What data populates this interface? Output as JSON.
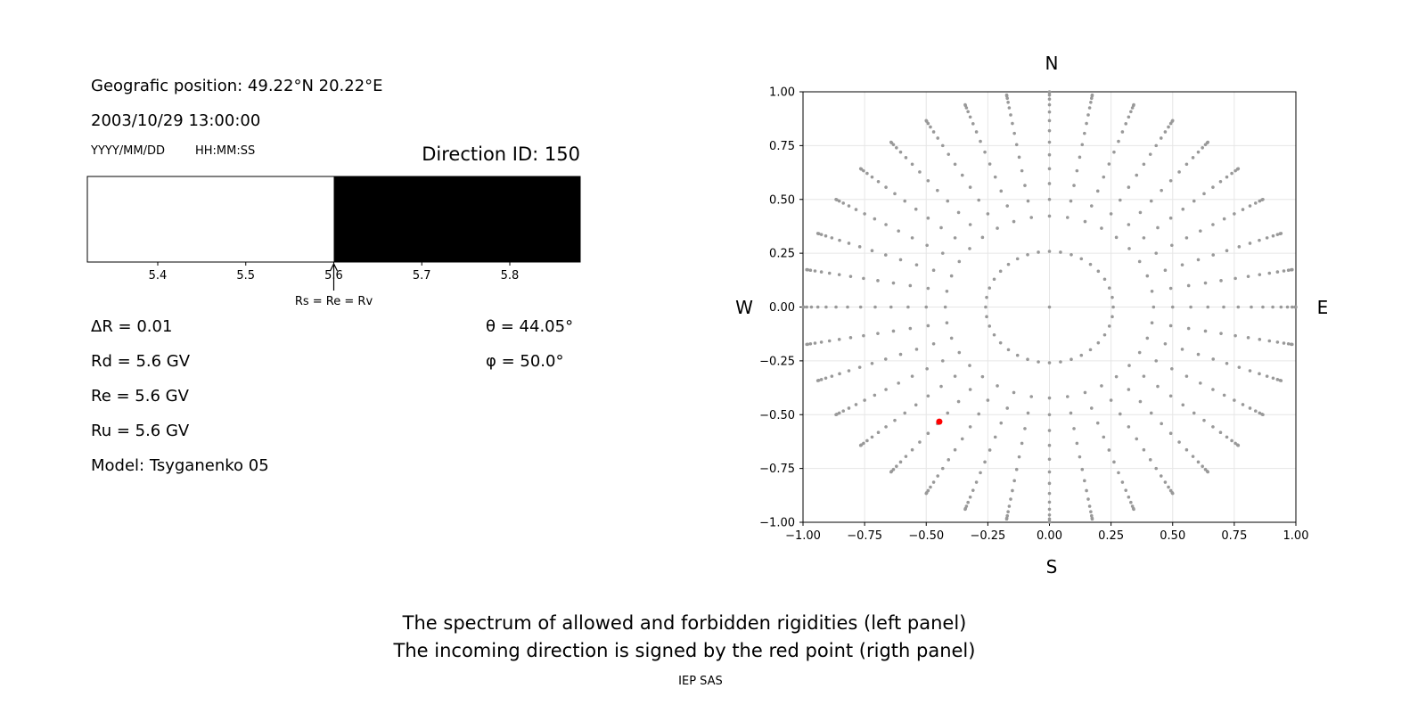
{
  "info": {
    "position": "Geografic position: 49.22°N 20.22°E",
    "datetime": "2003/10/29 13:00:00",
    "date_format": "YYYY/MM/DD",
    "time_format": "HH:MM:SS",
    "direction": "Direction ID: 150",
    "delta_r": "ΔR = 0.01",
    "rd": "Rd = 5.6 GV",
    "re": "Re = 5.6 GV",
    "ru": "Ru = 5.6 GV",
    "model": "Model: Tsyganenko 05"
  },
  "chart_data": [
    {
      "type": "spectrum",
      "xlim": [
        5.32,
        5.88
      ],
      "xticks": [
        5.4,
        5.5,
        5.6,
        5.7,
        5.8
      ],
      "segments": [
        {
          "from": 5.32,
          "to": 5.6,
          "color": "#ffffff"
        },
        {
          "from": 5.6,
          "to": 5.88,
          "color": "#000000"
        }
      ],
      "marker": {
        "value": 5.6,
        "label": "Rs = Re = Rv"
      }
    },
    {
      "type": "sky",
      "xlim": [
        -1,
        1
      ],
      "ylim": [
        -1,
        1
      ],
      "xticks": [
        {
          "value": -1,
          "label": "−1.00"
        },
        {
          "value": -0.75,
          "label": "−0.75"
        },
        {
          "value": -0.5,
          "label": "−0.50"
        },
        {
          "value": -0.25,
          "label": "−0.25"
        },
        {
          "value": 0,
          "label": "0.00"
        },
        {
          "value": 0.25,
          "label": "0.25"
        },
        {
          "value": 0.5,
          "label": "0.50"
        },
        {
          "value": 0.75,
          "label": "0.75"
        },
        {
          "value": 1,
          "label": "1.00"
        }
      ],
      "yticks": [
        {
          "value": -1,
          "label": "−1.00"
        },
        {
          "value": -0.75,
          "label": "−0.75"
        },
        {
          "value": -0.5,
          "label": "−0.50"
        },
        {
          "value": -0.25,
          "label": "−0.25"
        },
        {
          "value": 0,
          "label": "0.00"
        },
        {
          "value": 0.25,
          "label": "0.25"
        },
        {
          "value": 0.5,
          "label": "0.50"
        },
        {
          "value": 0.75,
          "label": "0.75"
        },
        {
          "value": 1,
          "label": "1.00"
        }
      ],
      "grid": true,
      "compass": {
        "north": "N",
        "south": "S",
        "west": "W",
        "east": "E"
      },
      "directions": {
        "color": "#999999",
        "zenith": [
          0,
          15,
          25,
          30,
          35,
          40,
          45,
          50,
          55,
          60,
          65,
          70,
          75,
          80,
          85,
          90
        ],
        "azimuth": [
          0,
          10,
          20,
          30,
          40,
          50,
          60,
          70,
          80,
          90,
          100,
          110,
          120,
          130,
          140,
          150,
          160,
          170,
          180,
          190,
          200,
          210,
          220,
          230,
          240,
          250,
          260,
          270,
          280,
          290,
          300,
          310,
          320,
          330,
          340,
          350
        ]
      },
      "selected": {
        "color": "#ff0000",
        "theta": {
          "value": 44.05,
          "label": "θ = 44.05°"
        },
        "phi": {
          "value": 50.0,
          "label": "φ = 50.0°"
        }
      }
    }
  ],
  "caption": [
    "The spectrum of allowed and forbidden rigidities (left panel)",
    "The incoming direction is signed by the red point (rigth panel)"
  ],
  "credit": "IEP SAS"
}
